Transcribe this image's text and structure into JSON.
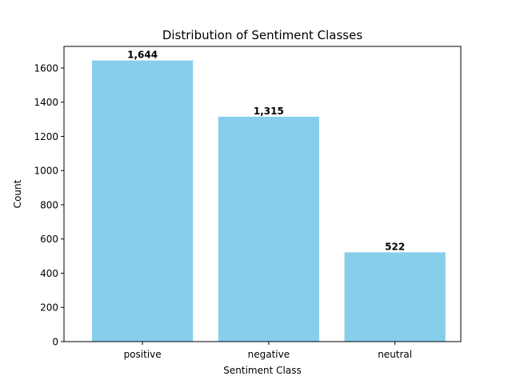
{
  "chart_data": {
    "type": "bar",
    "title": "Distribution of Sentiment Classes",
    "xlabel": "Sentiment Class",
    "ylabel": "Count",
    "categories": [
      "positive",
      "negative",
      "neutral"
    ],
    "values": [
      1644,
      1315,
      522
    ],
    "data_labels": [
      "1,644",
      "1,315",
      "522"
    ],
    "ylim": [
      0,
      1726.2
    ],
    "yticks": [
      0,
      200,
      400,
      600,
      800,
      1000,
      1200,
      1400,
      1600
    ],
    "ytick_labels": [
      "0",
      "200",
      "400",
      "600",
      "800",
      "1000",
      "1200",
      "1400",
      "1600"
    ],
    "bar_color": "#87ceeb",
    "grid": false,
    "legend": "none"
  }
}
